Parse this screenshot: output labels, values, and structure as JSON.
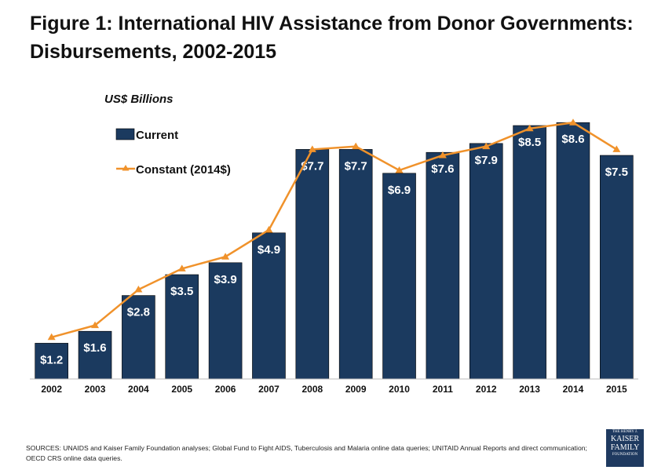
{
  "title": "Figure 1: International HIV Assistance from Donor Governments: Disbursements, 2002-2015",
  "chart_data": {
    "type": "bar",
    "title": "Figure 1: International HIV Assistance from Donor Governments: Disbursements, 2002-2015",
    "ylabel": "US$ Billions",
    "xlabel": "",
    "categories": [
      "2002",
      "2003",
      "2004",
      "2005",
      "2006",
      "2007",
      "2008",
      "2009",
      "2010",
      "2011",
      "2012",
      "2013",
      "2014",
      "2015"
    ],
    "series": [
      {
        "name": "Current",
        "type": "bar",
        "color": "#1b3a5f",
        "values": [
          1.2,
          1.6,
          2.8,
          3.5,
          3.9,
          4.9,
          7.7,
          7.7,
          6.9,
          7.6,
          7.9,
          8.5,
          8.6,
          7.5
        ],
        "labels": [
          "$1.2",
          "$1.6",
          "$2.8",
          "$3.5",
          "$3.9",
          "$4.9",
          "$7.7",
          "$7.7",
          "$6.9",
          "$7.6",
          "$7.9",
          "$8.5",
          "$8.6",
          "$7.5"
        ]
      },
      {
        "name": "Constant (2014$)",
        "type": "line",
        "marker": "triangle",
        "color": "#f0922b",
        "values": [
          1.4,
          1.8,
          3.0,
          3.7,
          4.1,
          5.0,
          7.7,
          7.8,
          7.0,
          7.5,
          7.8,
          8.4,
          8.6,
          7.7
        ]
      }
    ],
    "ylim": [
      0,
      9
    ],
    "grid": false,
    "legend": "top-left"
  },
  "sources": "SOURCES: UNAIDS and Kaiser Family Foundation analyses; Global Fund to Fight AIDS, Tuberculosis and Malaria online data queries; UNITAID Annual Reports and direct communication; OECD CRS online data queries.",
  "logo": {
    "line1": "THE HENRY J.",
    "line2": "KAISER",
    "line3": "FAMILY",
    "line4": "FOUNDATION"
  }
}
